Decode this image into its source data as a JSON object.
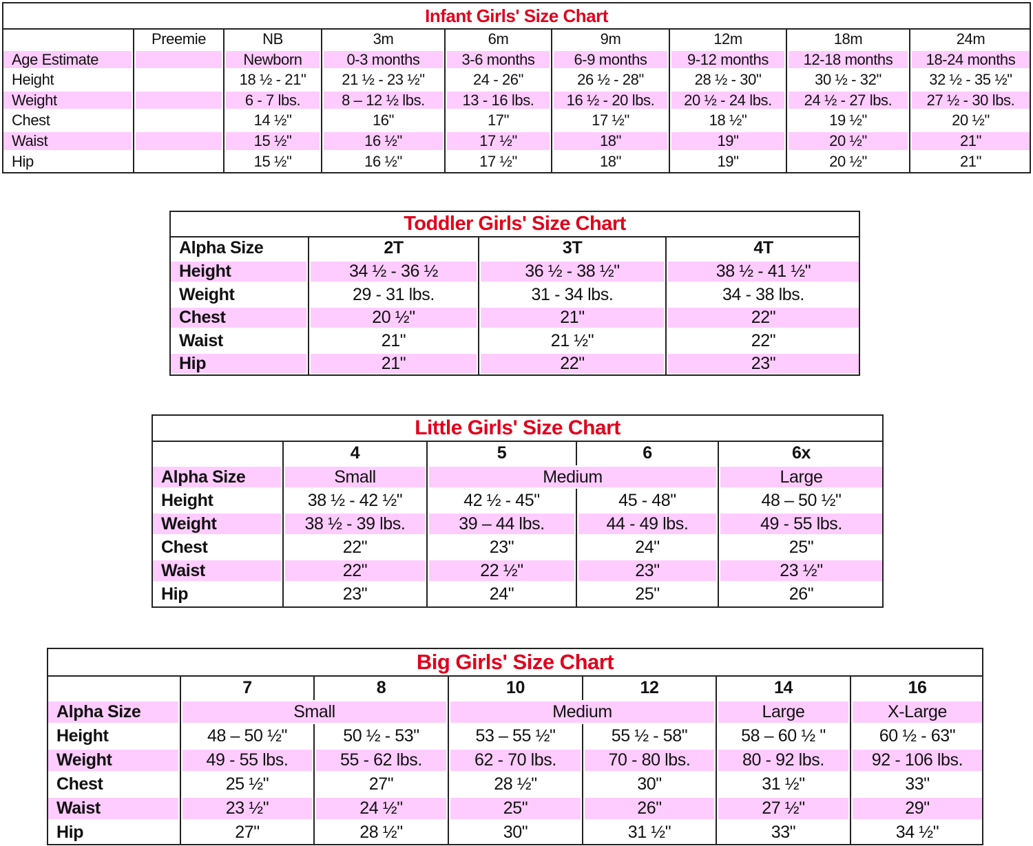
{
  "colors": {
    "title": "#e0001b",
    "highlight_row": "#ffccff",
    "border": "#222222"
  },
  "tables": [
    {
      "title": "Infant Girls' Size Chart",
      "rows": [
        {
          "label": "",
          "pink": false,
          "cells": [
            {
              "text": "Preemie",
              "span": 1
            },
            {
              "text": "NB",
              "span": 1
            },
            {
              "text": "3m",
              "span": 1
            },
            {
              "text": "6m",
              "span": 1
            },
            {
              "text": "9m",
              "span": 1
            },
            {
              "text": "12m",
              "span": 1
            },
            {
              "text": "18m",
              "span": 1
            },
            {
              "text": "24m",
              "span": 1
            }
          ]
        },
        {
          "label": "Age Estimate",
          "pink": true,
          "cells": [
            {
              "text": "",
              "span": 1
            },
            {
              "text": "Newborn",
              "span": 1
            },
            {
              "text": "0-3 months",
              "span": 1
            },
            {
              "text": "3-6 months",
              "span": 1
            },
            {
              "text": "6-9 months",
              "span": 1
            },
            {
              "text": "9-12 months",
              "span": 1
            },
            {
              "text": "12-18 months",
              "span": 1
            },
            {
              "text": "18-24 months",
              "span": 1
            }
          ]
        },
        {
          "label": "Height",
          "pink": false,
          "cells": [
            {
              "text": "",
              "span": 1
            },
            {
              "text": "18 ½ - 21\"",
              "span": 1
            },
            {
              "text": "21 ½ - 23 ½\"",
              "span": 1
            },
            {
              "text": "24 - 26\"",
              "span": 1
            },
            {
              "text": "26 ½ - 28\"",
              "span": 1
            },
            {
              "text": "28 ½ - 30\"",
              "span": 1
            },
            {
              "text": "30 ½ - 32\"",
              "span": 1
            },
            {
              "text": "32 ½ - 35 ½\"",
              "span": 1
            }
          ]
        },
        {
          "label": "Weight",
          "pink": true,
          "cells": [
            {
              "text": "",
              "span": 1
            },
            {
              "text": "6 - 7 lbs.",
              "span": 1
            },
            {
              "text": "8 – 12 ½ lbs.",
              "span": 1
            },
            {
              "text": "13 - 16 lbs.",
              "span": 1
            },
            {
              "text": "16 ½ - 20 lbs.",
              "span": 1
            },
            {
              "text": "20 ½ - 24 lbs.",
              "span": 1
            },
            {
              "text": "24 ½ - 27 lbs.",
              "span": 1
            },
            {
              "text": "27 ½ - 30 lbs.",
              "span": 1
            }
          ]
        },
        {
          "label": "Chest",
          "pink": false,
          "cells": [
            {
              "text": "",
              "span": 1
            },
            {
              "text": "14 ½\"",
              "span": 1
            },
            {
              "text": "16\"",
              "span": 1
            },
            {
              "text": "17\"",
              "span": 1
            },
            {
              "text": "17 ½\"",
              "span": 1
            },
            {
              "text": "18 ½\"",
              "span": 1
            },
            {
              "text": "19 ½\"",
              "span": 1
            },
            {
              "text": "20 ½\"",
              "span": 1
            }
          ]
        },
        {
          "label": "Waist",
          "pink": true,
          "cells": [
            {
              "text": "",
              "span": 1
            },
            {
              "text": "15 ½\"",
              "span": 1
            },
            {
              "text": "16 ½\"",
              "span": 1
            },
            {
              "text": "17 ½\"",
              "span": 1
            },
            {
              "text": "18\"",
              "span": 1
            },
            {
              "text": "19\"",
              "span": 1
            },
            {
              "text": "20 ½\"",
              "span": 1
            },
            {
              "text": "21\"",
              "span": 1
            }
          ]
        },
        {
          "label": "Hip",
          "pink": false,
          "cells": [
            {
              "text": "",
              "span": 1
            },
            {
              "text": "15 ½\"",
              "span": 1
            },
            {
              "text": "16 ½\"",
              "span": 1
            },
            {
              "text": "17 ½\"",
              "span": 1
            },
            {
              "text": "18\"",
              "span": 1
            },
            {
              "text": "19\"",
              "span": 1
            },
            {
              "text": "20 ½\"",
              "span": 1
            },
            {
              "text": "21\"",
              "span": 1
            }
          ]
        }
      ]
    },
    {
      "title": "Toddler Girls' Size Chart",
      "rows": [
        {
          "label": "Alpha Size",
          "pink": false,
          "cells": [
            {
              "text": "2T",
              "span": 1
            },
            {
              "text": "3T",
              "span": 1
            },
            {
              "text": "4T",
              "span": 1
            }
          ]
        },
        {
          "label": "Height",
          "pink": true,
          "cells": [
            {
              "text": "34 ½ - 36 ½",
              "span": 1
            },
            {
              "text": "36 ½ - 38 ½\"",
              "span": 1
            },
            {
              "text": "38 ½ - 41 ½\"",
              "span": 1
            }
          ]
        },
        {
          "label": "Weight",
          "pink": false,
          "cells": [
            {
              "text": "29 - 31 lbs.",
              "span": 1
            },
            {
              "text": "31 - 34 lbs.",
              "span": 1
            },
            {
              "text": "34 - 38 lbs.",
              "span": 1
            }
          ]
        },
        {
          "label": "Chest",
          "pink": true,
          "cells": [
            {
              "text": "20 ½\"",
              "span": 1
            },
            {
              "text": "21\"",
              "span": 1
            },
            {
              "text": "22\"",
              "span": 1
            }
          ]
        },
        {
          "label": "Waist",
          "pink": false,
          "cells": [
            {
              "text": "21\"",
              "span": 1
            },
            {
              "text": "21 ½\"",
              "span": 1
            },
            {
              "text": "22\"",
              "span": 1
            }
          ]
        },
        {
          "label": "Hip",
          "pink": true,
          "cells": [
            {
              "text": "21\"",
              "span": 1
            },
            {
              "text": "22\"",
              "span": 1
            },
            {
              "text": "23\"",
              "span": 1
            }
          ]
        }
      ]
    },
    {
      "title": "Little Girls' Size Chart",
      "rows": [
        {
          "label": "",
          "pink": false,
          "cells": [
            {
              "text": "4",
              "span": 1
            },
            {
              "text": "5",
              "span": 1
            },
            {
              "text": "6",
              "span": 1
            },
            {
              "text": "6x",
              "span": 1
            }
          ]
        },
        {
          "label": "Alpha Size",
          "pink": true,
          "cells": [
            {
              "text": "Small",
              "span": 1
            },
            {
              "text": "Medium",
              "span": 2
            },
            {
              "text": "Large",
              "span": 1
            }
          ]
        },
        {
          "label": "Height",
          "pink": false,
          "cells": [
            {
              "text": "38 ½ - 42 ½\"",
              "span": 1
            },
            {
              "text": "42 ½ - 45\"",
              "span": 1
            },
            {
              "text": "45 - 48\"",
              "span": 1
            },
            {
              "text": "48 – 50 ½\"",
              "span": 1
            }
          ]
        },
        {
          "label": "Weight",
          "pink": true,
          "cells": [
            {
              "text": "38 ½ - 39 lbs.",
              "span": 1
            },
            {
              "text": "39 – 44 lbs.",
              "span": 1
            },
            {
              "text": "44 - 49 lbs.",
              "span": 1
            },
            {
              "text": "49 - 55 lbs.",
              "span": 1
            }
          ]
        },
        {
          "label": "Chest",
          "pink": false,
          "cells": [
            {
              "text": "22\"",
              "span": 1
            },
            {
              "text": "23\"",
              "span": 1
            },
            {
              "text": "24\"",
              "span": 1
            },
            {
              "text": "25\"",
              "span": 1
            }
          ]
        },
        {
          "label": "Waist",
          "pink": true,
          "cells": [
            {
              "text": "22\"",
              "span": 1
            },
            {
              "text": "22 ½\"",
              "span": 1
            },
            {
              "text": "23\"",
              "span": 1
            },
            {
              "text": "23 ½\"",
              "span": 1
            }
          ]
        },
        {
          "label": "Hip",
          "pink": false,
          "cells": [
            {
              "text": "23\"",
              "span": 1
            },
            {
              "text": "24\"",
              "span": 1
            },
            {
              "text": "25\"",
              "span": 1
            },
            {
              "text": "26\"",
              "span": 1
            }
          ]
        }
      ]
    },
    {
      "title": "Big Girls' Size Chart",
      "rows": [
        {
          "label": "",
          "pink": false,
          "cells": [
            {
              "text": "7",
              "span": 1
            },
            {
              "text": "8",
              "span": 1
            },
            {
              "text": "10",
              "span": 1
            },
            {
              "text": "12",
              "span": 1
            },
            {
              "text": "14",
              "span": 1
            },
            {
              "text": "16",
              "span": 1
            }
          ]
        },
        {
          "label": "Alpha Size",
          "pink": true,
          "cells": [
            {
              "text": "Small",
              "span": 2
            },
            {
              "text": "Medium",
              "span": 2
            },
            {
              "text": "Large",
              "span": 1
            },
            {
              "text": "X-Large",
              "span": 1
            }
          ]
        },
        {
          "label": "Height",
          "pink": false,
          "cells": [
            {
              "text": "48 – 50 ½\"",
              "span": 1
            },
            {
              "text": "50 ½ - 53\"",
              "span": 1
            },
            {
              "text": "53 – 55 ½\"",
              "span": 1
            },
            {
              "text": "55 ½ - 58\"",
              "span": 1
            },
            {
              "text": "58 – 60 ½ \"",
              "span": 1
            },
            {
              "text": "60 ½ - 63\"",
              "span": 1
            }
          ]
        },
        {
          "label": "Weight",
          "pink": true,
          "cells": [
            {
              "text": "49 - 55 lbs.",
              "span": 1
            },
            {
              "text": "55 - 62 lbs.",
              "span": 1
            },
            {
              "text": "62 - 70 lbs.",
              "span": 1
            },
            {
              "text": "70 - 80 lbs.",
              "span": 1
            },
            {
              "text": "80 - 92 lbs.",
              "span": 1
            },
            {
              "text": "92 - 106 lbs.",
              "span": 1
            }
          ]
        },
        {
          "label": "Chest",
          "pink": false,
          "cells": [
            {
              "text": "25 ½\"",
              "span": 1
            },
            {
              "text": "27\"",
              "span": 1
            },
            {
              "text": "28 ½\"",
              "span": 1
            },
            {
              "text": "30\"",
              "span": 1
            },
            {
              "text": "31 ½\"",
              "span": 1
            },
            {
              "text": "33\"",
              "span": 1
            }
          ]
        },
        {
          "label": "Waist",
          "pink": true,
          "cells": [
            {
              "text": "23 ½\"",
              "span": 1
            },
            {
              "text": "24 ½\"",
              "span": 1
            },
            {
              "text": "25\"",
              "span": 1
            },
            {
              "text": "26\"",
              "span": 1
            },
            {
              "text": "27 ½\"",
              "span": 1
            },
            {
              "text": "29\"",
              "span": 1
            }
          ]
        },
        {
          "label": "Hip",
          "pink": false,
          "cells": [
            {
              "text": "27\"",
              "span": 1
            },
            {
              "text": "28 ½\"",
              "span": 1
            },
            {
              "text": "30\"",
              "span": 1
            },
            {
              "text": "31 ½\"",
              "span": 1
            },
            {
              "text": "33\"",
              "span": 1
            },
            {
              "text": "34 ½\"",
              "span": 1
            }
          ]
        }
      ]
    }
  ]
}
